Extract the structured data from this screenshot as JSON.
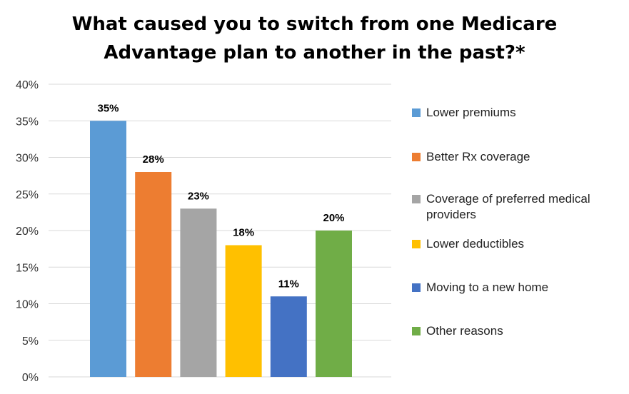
{
  "chart_data": {
    "type": "bar",
    "title_lines": [
      "What caused you to switch from one Medicare",
      "Advantage plan to another in the past?*"
    ],
    "categories": [
      "Lower premiums",
      "Better Rx coverage",
      "Coverage of preferred medical providers",
      "Lower deductibles",
      "Moving to a new home",
      "Other reasons"
    ],
    "values": [
      35,
      28,
      23,
      18,
      11,
      20
    ],
    "data_labels": [
      "35%",
      "28%",
      "23%",
      "18%",
      "11%",
      "20%"
    ],
    "colors": [
      "#5b9bd5",
      "#ed7d31",
      "#a5a5a5",
      "#ffc000",
      "#4472c4",
      "#70ad47"
    ],
    "y_ticks": [
      0,
      5,
      10,
      15,
      20,
      25,
      30,
      35,
      40
    ],
    "y_tick_labels": [
      "0%",
      "5%",
      "10%",
      "15%",
      "20%",
      "25%",
      "30%",
      "35%",
      "40%"
    ],
    "ylim": [
      0,
      40
    ],
    "grid": true,
    "legend_position": "right",
    "xlabel": "",
    "ylabel": ""
  }
}
